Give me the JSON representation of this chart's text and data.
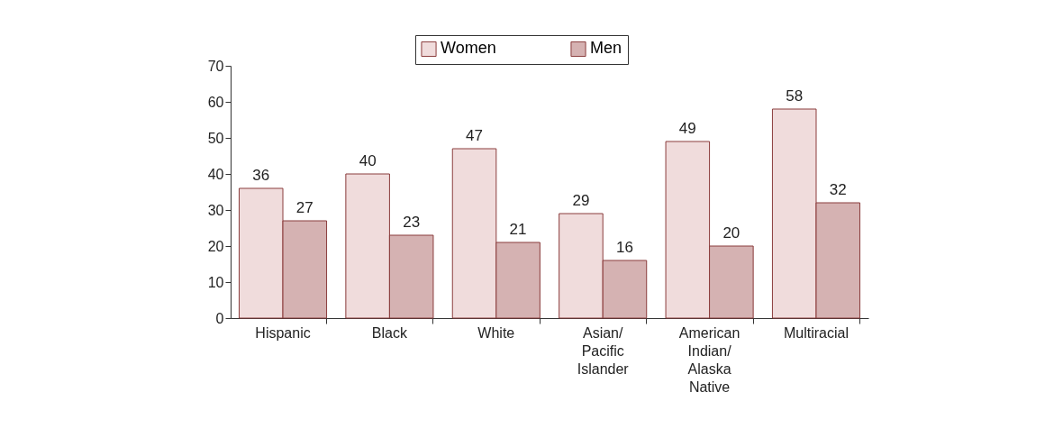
{
  "chart_data": {
    "type": "bar",
    "categories": [
      "Hispanic",
      "Black",
      "White",
      "Asian/ Pacific Islander",
      "American Indian/ Alaska Native",
      "Multiracial"
    ],
    "series": [
      {
        "name": "Women",
        "color": "#f0dcdc",
        "values": [
          36,
          40,
          47,
          29,
          49,
          58
        ]
      },
      {
        "name": "Men",
        "color": "#d5b2b2",
        "values": [
          27,
          23,
          21,
          16,
          20,
          32
        ]
      }
    ],
    "ylim": [
      0,
      70
    ],
    "yticks": [
      0,
      10,
      20,
      30,
      40,
      50,
      60,
      70
    ],
    "grid": false,
    "legend": "top",
    "data_labels": true
  }
}
